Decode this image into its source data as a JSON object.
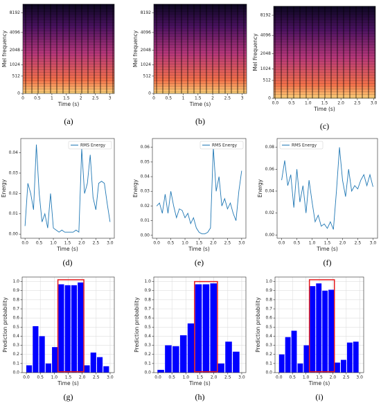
{
  "chart_data": [
    {
      "type": "spectrogram",
      "caption": "(a)",
      "xlabel": "Time (s)",
      "ylabel": "Mel frequency",
      "yscale": "mel",
      "xlim": [
        0,
        3.15
      ],
      "xticks": [
        0,
        0.5,
        1,
        1.5,
        2,
        2.5,
        3
      ],
      "ylim": [
        0,
        11025
      ],
      "yticks": [
        0,
        512,
        1024,
        2048,
        4096,
        8192
      ]
    },
    {
      "type": "spectrogram",
      "caption": "(b)",
      "xlabel": "Time (s)",
      "ylabel": "Mel frequency",
      "yscale": "mel",
      "xlim": [
        0,
        3.15
      ],
      "xticks": [
        0,
        0.5,
        1,
        1.5,
        2,
        2.5,
        3
      ],
      "ylim": [
        0,
        11025
      ],
      "yticks": [
        0,
        512,
        1024,
        2048,
        4096,
        8192
      ]
    },
    {
      "type": "spectrogram",
      "caption": "(c)",
      "xlabel": "Time (s)",
      "ylabel": "Mel Frequency",
      "yscale": "mel",
      "xlim": [
        -0.05,
        3.05
      ],
      "xticks": [
        {
          "value": 0,
          "label": "0.0"
        },
        0.5,
        {
          "value": 1,
          "label": "1.0"
        },
        1.5,
        {
          "value": 2,
          "label": "2.0"
        },
        2.5,
        {
          "value": 3,
          "label": "3.0"
        }
      ],
      "ylim": [
        0,
        11025
      ],
      "yticks": [
        0,
        512,
        1024,
        2048,
        4096,
        8192
      ]
    },
    {
      "type": "line",
      "caption": "(d)",
      "xlabel": "Time (s)",
      "ylabel": "Energy",
      "legend": "upper right",
      "grid": false,
      "xlim": [
        -0.15,
        3.15
      ],
      "xticks": [
        {
          "value": 0,
          "label": "0.0"
        },
        0.5,
        {
          "value": 1,
          "label": "1.0"
        },
        1.5,
        {
          "value": 2,
          "label": "2.0"
        },
        2.5,
        {
          "value": 3,
          "label": "3.0"
        }
      ],
      "ylim": [
        -0.002,
        0.047
      ],
      "yticks": [
        {
          "value": 0,
          "label": "0.00"
        },
        0.01,
        0.02,
        0.03,
        0.04
      ],
      "x": [
        0,
        0.1,
        0.2,
        0.3,
        0.4,
        0.5,
        0.6,
        0.7,
        0.8,
        0.9,
        1.0,
        1.1,
        1.2,
        1.3,
        1.4,
        1.5,
        1.6,
        1.7,
        1.8,
        1.9,
        2.0,
        2.1,
        2.2,
        2.3,
        2.4,
        2.5,
        2.6,
        2.7,
        2.8,
        2.9,
        3.0
      ],
      "series": [
        {
          "name": "RMS Energy",
          "color": "#1f77b4",
          "values": [
            0.004,
            0.025,
            0.02,
            0.012,
            0.044,
            0.02,
            0.006,
            0.01,
            0.003,
            0.02,
            0.003,
            0.002,
            0.001,
            0.002,
            0.001,
            0.001,
            0.001,
            0.001,
            0.002,
            0.001,
            0.042,
            0.02,
            0.025,
            0.039,
            0.018,
            0.012,
            0.025,
            0.026,
            0.025,
            0.015,
            0.006
          ]
        }
      ]
    },
    {
      "type": "line",
      "caption": "(e)",
      "xlabel": "Time (s)",
      "ylabel": "Energy",
      "legend": "upper right",
      "grid": false,
      "xlim": [
        -0.15,
        3.15
      ],
      "xticks": [
        {
          "value": 0,
          "label": "0.0"
        },
        0.5,
        {
          "value": 1,
          "label": "1.0"
        },
        1.5,
        {
          "value": 2,
          "label": "2.0"
        },
        2.5,
        {
          "value": 3,
          "label": "3.0"
        }
      ],
      "ylim": [
        -0.002,
        0.066
      ],
      "yticks": [
        {
          "value": 0,
          "label": "0.00"
        },
        0.01,
        0.02,
        0.03,
        0.04,
        0.05,
        0.06
      ],
      "x": [
        0,
        0.1,
        0.2,
        0.3,
        0.4,
        0.5,
        0.6,
        0.7,
        0.8,
        0.9,
        1.0,
        1.1,
        1.2,
        1.3,
        1.4,
        1.5,
        1.6,
        1.7,
        1.8,
        1.9,
        2.0,
        2.1,
        2.2,
        2.3,
        2.4,
        2.5,
        2.6,
        2.7,
        2.8,
        2.9,
        3.0
      ],
      "series": [
        {
          "name": "RMS Energy",
          "color": "#1f77b4",
          "values": [
            0.02,
            0.022,
            0.015,
            0.028,
            0.015,
            0.03,
            0.02,
            0.012,
            0.018,
            0.017,
            0.012,
            0.015,
            0.008,
            0.012,
            0.005,
            0.002,
            0.001,
            0.001,
            0.002,
            0.005,
            0.06,
            0.03,
            0.04,
            0.02,
            0.025,
            0.018,
            0.022,
            0.015,
            0.01,
            0.03,
            0.044
          ]
        }
      ]
    },
    {
      "type": "line",
      "caption": "(f)",
      "xlabel": "Time (s)",
      "ylabel": "Energy",
      "legend": "upper left",
      "grid": false,
      "xlim": [
        -0.15,
        3.15
      ],
      "xticks": [
        {
          "value": 0,
          "label": "0.0"
        },
        0.5,
        {
          "value": 1,
          "label": "1.0"
        },
        1.5,
        {
          "value": 2,
          "label": "2.0"
        },
        2.5,
        {
          "value": 3,
          "label": "3.0"
        }
      ],
      "ylim": [
        -0.003,
        0.088
      ],
      "yticks": [
        {
          "value": 0,
          "label": "0.00"
        },
        0.02,
        0.04,
        0.06,
        0.08
      ],
      "x": [
        0,
        0.1,
        0.2,
        0.3,
        0.4,
        0.5,
        0.6,
        0.7,
        0.8,
        0.9,
        1.0,
        1.1,
        1.2,
        1.3,
        1.4,
        1.5,
        1.6,
        1.7,
        1.8,
        1.9,
        2.0,
        2.1,
        2.2,
        2.3,
        2.4,
        2.5,
        2.6,
        2.7,
        2.8,
        2.9,
        3.0
      ],
      "series": [
        {
          "name": "RMS Energy",
          "color": "#1f77b4",
          "values": [
            0.05,
            0.068,
            0.045,
            0.055,
            0.025,
            0.06,
            0.03,
            0.045,
            0.02,
            0.05,
            0.03,
            0.012,
            0.018,
            0.008,
            0.01,
            0.006,
            0.012,
            0.005,
            0.04,
            0.08,
            0.05,
            0.035,
            0.06,
            0.04,
            0.045,
            0.042,
            0.05,
            0.055,
            0.045,
            0.055,
            0.044
          ]
        }
      ]
    },
    {
      "type": "bar",
      "caption": "(g)",
      "xlabel": "Time (s)",
      "ylabel": "Prediction probability",
      "grid": true,
      "color": "#0000ff",
      "highlight_color": "#e41a1c",
      "highlight_x": [
        1.13,
        2.06
      ],
      "highlight_y": [
        0.01,
        1.02
      ],
      "xlim": [
        -0.15,
        3.15
      ],
      "xticks": [
        {
          "value": 0,
          "label": "0.0"
        },
        0.5,
        {
          "value": 1,
          "label": "1.0"
        },
        1.5,
        {
          "value": 2,
          "label": "2.0"
        },
        2.5,
        {
          "value": 3,
          "label": "3.0"
        }
      ],
      "ylim": [
        0,
        1.05
      ],
      "yticks": [
        {
          "value": 0,
          "label": "0.0"
        },
        0.1,
        0.2,
        0.3,
        0.4,
        0.5,
        0.6,
        0.7,
        0.8,
        0.9,
        {
          "value": 1,
          "label": "1.0"
        }
      ],
      "x": [
        0.1,
        0.33,
        0.56,
        0.79,
        1.02,
        1.25,
        1.48,
        1.71,
        1.94,
        2.17,
        2.4,
        2.63,
        2.86
      ],
      "values": [
        0.08,
        0.51,
        0.4,
        0.1,
        0.28,
        0.97,
        0.96,
        0.96,
        0.99,
        0.08,
        0.22,
        0.17,
        0.07
      ]
    },
    {
      "type": "bar",
      "caption": "(h)",
      "xlabel": "Time (s)",
      "ylabel": "Prediction probability",
      "grid": true,
      "color": "#0000ff",
      "highlight_color": "#e41a1c",
      "highlight_x": [
        1.31,
        2.13
      ],
      "highlight_y": [
        0.01,
        1.0
      ],
      "xlim": [
        -0.15,
        3.15
      ],
      "xticks": [
        {
          "value": 0,
          "label": "0.0"
        },
        0.5,
        {
          "value": 1,
          "label": "1.0"
        },
        1.5,
        {
          "value": 2,
          "label": "2.0"
        },
        2.5,
        {
          "value": 3,
          "label": "3.0"
        }
      ],
      "ylim": [
        0,
        1.05
      ],
      "yticks": [
        {
          "value": 0,
          "label": "0.0"
        },
        0.1,
        0.2,
        0.3,
        0.4,
        0.5,
        0.6,
        0.7,
        0.8,
        0.9,
        {
          "value": 1,
          "label": "1.0"
        }
      ],
      "x": [
        0.1,
        0.37,
        0.64,
        0.91,
        1.18,
        1.45,
        1.72,
        1.99,
        2.26,
        2.53,
        2.8
      ],
      "values": [
        0.03,
        0.3,
        0.29,
        0.41,
        0.54,
        0.97,
        0.97,
        0.98,
        0.1,
        0.34,
        0.23
      ]
    },
    {
      "type": "bar",
      "caption": "(i)",
      "xlabel": "Time (s)",
      "ylabel": "Prediction probability",
      "grid": true,
      "color": "#0000ff",
      "highlight_color": "#e41a1c",
      "highlight_x": [
        1.13,
        2.06
      ],
      "highlight_y": [
        0.01,
        1.02
      ],
      "xlim": [
        -0.15,
        3.15
      ],
      "xticks": [
        {
          "value": 0,
          "label": "0.0"
        },
        0.5,
        {
          "value": 1,
          "label": "1.0"
        },
        1.5,
        {
          "value": 2,
          "label": "2.0"
        },
        2.5,
        {
          "value": 3,
          "label": "3.0"
        }
      ],
      "ylim": [
        0,
        1.05
      ],
      "yticks": [
        {
          "value": 0,
          "label": "0.0"
        },
        0.1,
        0.2,
        0.3,
        0.4,
        0.5,
        0.6,
        0.7,
        0.8,
        0.9,
        {
          "value": 1,
          "label": "1.0"
        }
      ],
      "x": [
        0.1,
        0.33,
        0.56,
        0.79,
        1.02,
        1.25,
        1.48,
        1.71,
        1.94,
        2.17,
        2.4,
        2.63,
        2.86
      ],
      "values": [
        0.2,
        0.39,
        0.46,
        0.1,
        0.3,
        0.95,
        0.98,
        0.9,
        0.91,
        0.11,
        0.14,
        0.33,
        0.34
      ]
    }
  ]
}
